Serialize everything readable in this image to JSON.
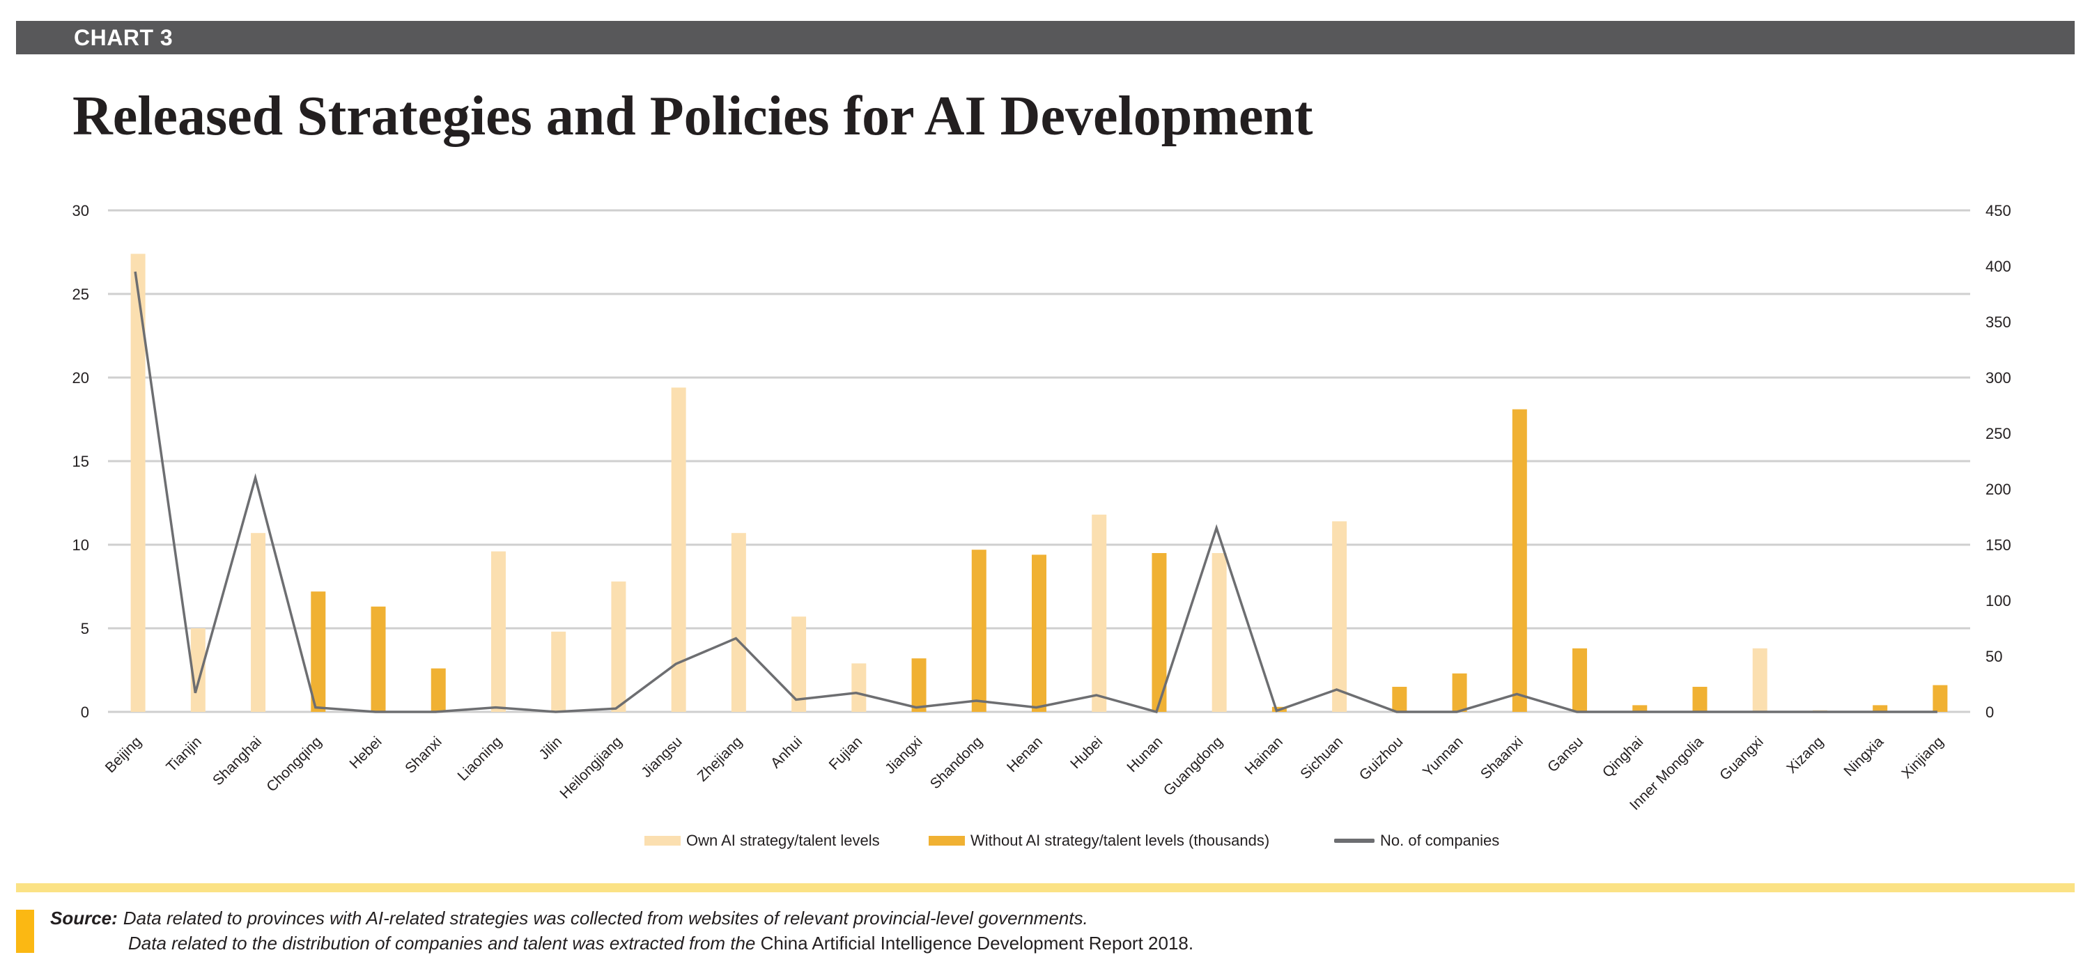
{
  "header": {
    "label": "CHART 3"
  },
  "title": "Released Strategies and Policies for AI Development",
  "colors": {
    "own": "#fbdfb0",
    "without": "#f0b133",
    "companies": "#6d6e71",
    "grid": "#cfcfcf",
    "header": "#58585a",
    "accent": "#fbb813",
    "rule": "#fbe285"
  },
  "chart_data": {
    "type": "bar",
    "title": "Released Strategies and Policies for AI Development",
    "categories": [
      "Beijing",
      "Tianjin",
      "Shanghai",
      "Chongqing",
      "Hebei",
      "Shanxi",
      "Liaoning",
      "Jilin",
      "Heilongjiang",
      "Jiangsu",
      "Zhejiang",
      "Anhui",
      "Fujian",
      "Jiangxi",
      "Shandong",
      "Henan",
      "Hubei",
      "Hunan",
      "Guangdong",
      "Hainan",
      "Sichuan",
      "Guizhou",
      "Yunnan",
      "Shaanxi",
      "Gansu",
      "Qinghai",
      "Inner Mongolia",
      "Guangxi",
      "Xizang",
      "Ningxia",
      "Xinjiang"
    ],
    "series": [
      {
        "name": "Own AI strategy/talent levels",
        "axis": "left",
        "values": [
          27.4,
          5.0,
          10.7,
          0,
          0,
          0,
          9.6,
          4.8,
          7.8,
          19.4,
          10.7,
          5.7,
          2.9,
          0,
          0,
          0,
          11.8,
          0,
          9.5,
          0,
          11.4,
          0,
          0,
          0,
          0,
          0,
          0,
          3.8,
          0.1,
          0,
          0
        ]
      },
      {
        "name": "Without AI strategy/talent levels (thousands)",
        "axis": "left",
        "values": [
          0,
          0,
          0,
          7.2,
          6.3,
          2.6,
          0,
          0,
          0,
          0,
          0,
          0,
          0,
          3.2,
          9.7,
          9.4,
          0,
          9.5,
          0,
          0.3,
          0,
          1.5,
          2.3,
          18.1,
          3.8,
          0.4,
          1.5,
          0,
          0,
          0.4,
          1.6
        ]
      },
      {
        "name": "No. of companies",
        "axis": "right",
        "type": "line",
        "values": [
          395,
          17,
          210,
          4,
          0,
          0,
          4,
          0,
          3,
          43,
          66,
          11,
          17,
          4,
          10,
          4,
          15,
          0,
          165,
          1,
          20,
          0,
          0,
          16,
          0,
          0,
          0,
          0,
          0,
          0,
          0
        ]
      }
    ],
    "left_axis": {
      "ylim": [
        0,
        30
      ],
      "ticks": [
        0,
        5,
        10,
        15,
        20,
        25,
        30
      ]
    },
    "right_axis": {
      "ylim": [
        0,
        450
      ],
      "ticks": [
        0,
        50,
        100,
        150,
        200,
        250,
        300,
        350,
        400,
        450
      ]
    },
    "legend_position": "bottom",
    "grid": true
  },
  "legend": {
    "own": "Own AI strategy/talent levels",
    "without": "Without AI strategy/talent levels (thousands)",
    "companies": "No. of companies"
  },
  "source": {
    "label": "Source:",
    "line1": "Data related to provinces with AI-related strategies was collected from websites of relevant provincial-level governments.",
    "line2_prefix": "Data related to the distribution of companies and talent was extracted from the ",
    "line2_title": "China Artificial Intelligence Development Report 2018."
  }
}
